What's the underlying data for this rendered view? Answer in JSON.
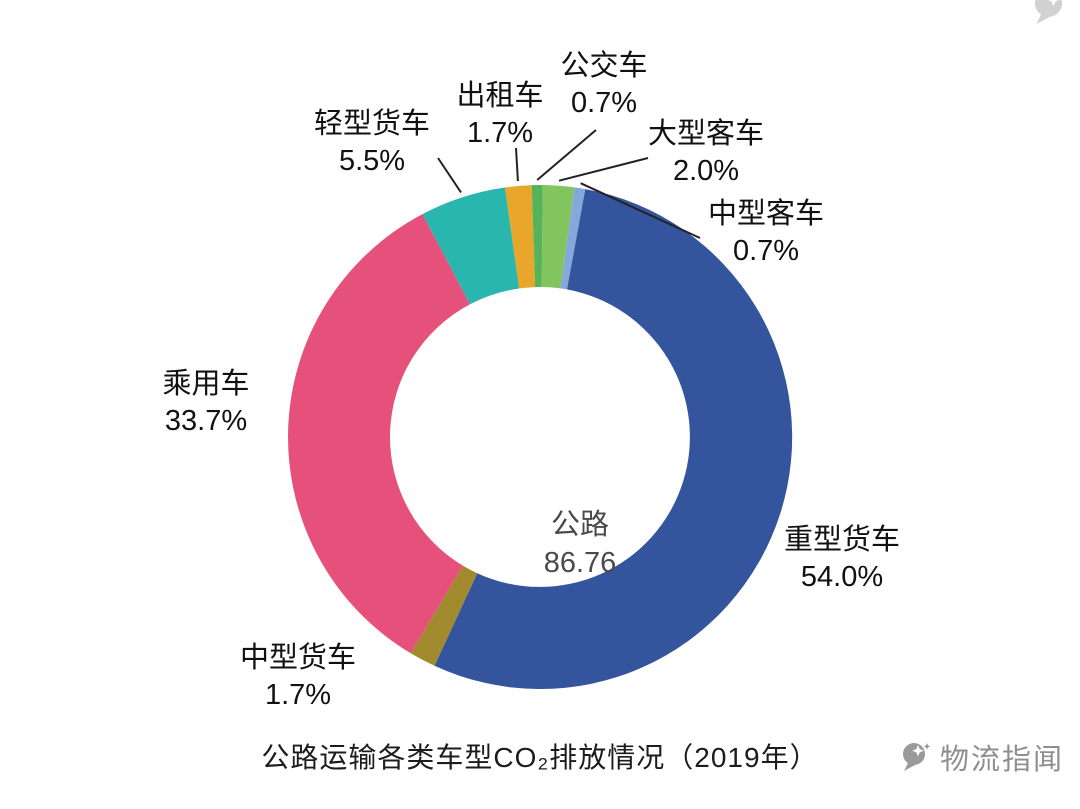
{
  "watermark": {
    "text": "物流指闻"
  },
  "chart_data": {
    "type": "pie",
    "subtype": "donut",
    "title": "公路运输各类车型CO₂排放情况（2019年）",
    "center": {
      "label": "公路",
      "value": "86.76"
    },
    "unit": "%",
    "start_angle_deg": -8,
    "legend": "none",
    "slices": [
      {
        "name": "出租车",
        "value": 1.7,
        "pct_label": "1.7%",
        "color": "#e8a62a"
      },
      {
        "name": "公交车",
        "value": 0.7,
        "pct_label": "0.7%",
        "color": "#57b35a"
      },
      {
        "name": "大型客车",
        "value": 2.0,
        "pct_label": "2.0%",
        "color": "#82c55e"
      },
      {
        "name": "中型客车",
        "value": 0.7,
        "pct_label": "0.7%",
        "color": "#86a8d8"
      },
      {
        "name": "重型货车",
        "value": 54.0,
        "pct_label": "54.0%",
        "color": "#34559d"
      },
      {
        "name": "中型货车",
        "value": 1.7,
        "pct_label": "1.7%",
        "color": "#a08a2d"
      },
      {
        "name": "乘用车",
        "value": 33.7,
        "pct_label": "33.7%",
        "color": "#e5517b"
      },
      {
        "name": "轻型货车",
        "value": 5.5,
        "pct_label": "5.5%",
        "color": "#29b6ae"
      }
    ]
  }
}
